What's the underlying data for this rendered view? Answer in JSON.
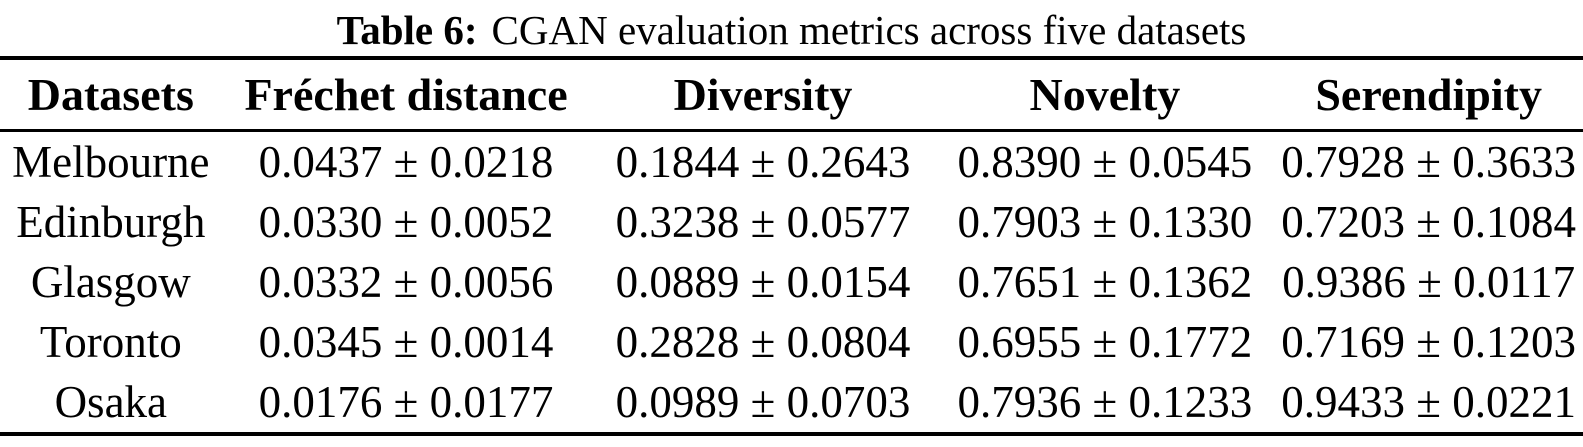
{
  "caption": {
    "label": "Table 6:",
    "text": "CGAN evaluation metrics across five datasets"
  },
  "table": {
    "headers": [
      "Datasets",
      "Fréchet distance",
      "Diversity",
      "Novelty",
      "Serendipity"
    ],
    "rows": [
      {
        "dataset": "Melbourne",
        "frechet": "0.0437 ± 0.0218",
        "diversity": "0.1844 ± 0.2643",
        "novelty": "0.8390 ± 0.0545",
        "serendipity": "0.7928 ± 0.3633"
      },
      {
        "dataset": "Edinburgh",
        "frechet": "0.0330 ± 0.0052",
        "diversity": "0.3238 ± 0.0577",
        "novelty": "0.7903 ± 0.1330",
        "serendipity": "0.7203 ± 0.1084"
      },
      {
        "dataset": "Glasgow",
        "frechet": "0.0332 ± 0.0056",
        "diversity": "0.0889 ± 0.0154",
        "novelty": "0.7651 ± 0.1362",
        "serendipity": "0.9386 ± 0.0117"
      },
      {
        "dataset": "Toronto",
        "frechet": "0.0345 ± 0.0014",
        "diversity": "0.2828 ± 0.0804",
        "novelty": "0.6955 ± 0.1772",
        "serendipity": "0.7169 ± 0.1203"
      },
      {
        "dataset": "Osaka",
        "frechet": "0.0176 ± 0.0177",
        "diversity": "0.0989 ± 0.0703",
        "novelty": "0.7936 ± 0.1233",
        "serendipity": "0.9433 ± 0.0221"
      }
    ]
  },
  "chart_data": {
    "type": "table",
    "title": "Table 6: CGAN evaluation metrics across five datasets",
    "columns": [
      "Datasets",
      "Fréchet distance",
      "Diversity",
      "Novelty",
      "Serendipity"
    ],
    "rows": [
      [
        "Melbourne",
        "0.0437 ± 0.0218",
        "0.1844 ± 0.2643",
        "0.8390 ± 0.0545",
        "0.7928 ± 0.3633"
      ],
      [
        "Edinburgh",
        "0.0330 ± 0.0052",
        "0.3238 ± 0.0577",
        "0.7903 ± 0.1330",
        "0.7203 ± 0.1084"
      ],
      [
        "Glasgow",
        "0.0332 ± 0.0056",
        "0.0889 ± 0.0154",
        "0.7651 ± 0.1362",
        "0.9386 ± 0.0117"
      ],
      [
        "Toronto",
        "0.0345 ± 0.0014",
        "0.2828 ± 0.0804",
        "0.6955 ± 0.1772",
        "0.7169 ± 0.1203"
      ],
      [
        "Osaka",
        "0.0176 ± 0.0177",
        "0.0989 ± 0.0703",
        "0.7936 ± 0.1233",
        "0.9433 ± 0.0221"
      ]
    ],
    "text_color": "#000000",
    "background_color": "#ffffff"
  }
}
